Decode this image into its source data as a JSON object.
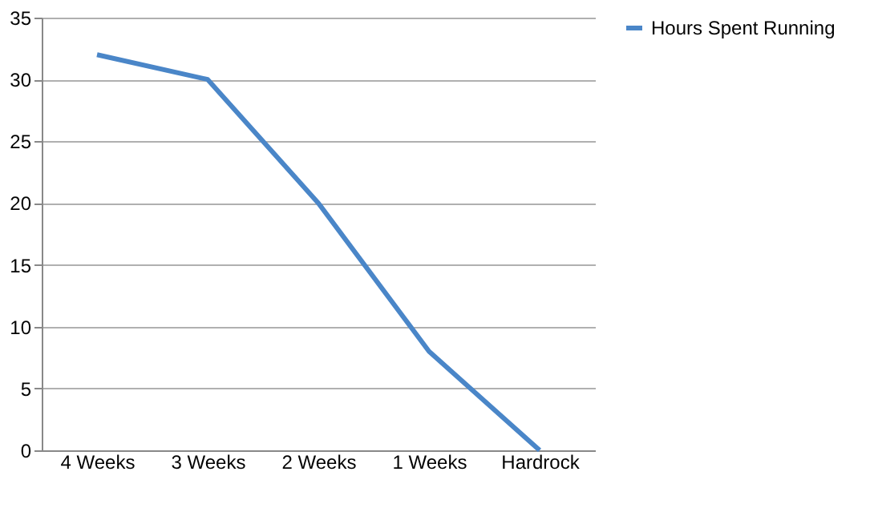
{
  "chart_data": {
    "type": "line",
    "categories": [
      "4 Weeks",
      "3 Weeks",
      "2 Weeks",
      "1 Weeks",
      "Hardrock"
    ],
    "series": [
      {
        "name": "Hours Spent Running",
        "color": "#4a86c8",
        "values": [
          32,
          30,
          20,
          8,
          0
        ]
      }
    ],
    "ylim": [
      0,
      35
    ],
    "yticks": [
      0,
      5,
      10,
      15,
      20,
      25,
      30,
      35
    ],
    "grid": "y",
    "legend": "right",
    "marker": "none",
    "line_style": "solid"
  }
}
